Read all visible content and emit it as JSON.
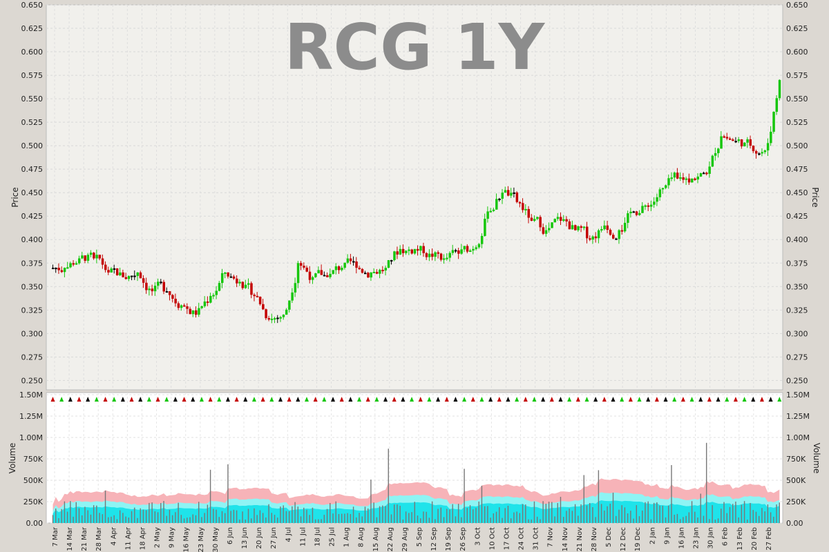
{
  "title": "RCG 1Y",
  "price_axis_label": "Price",
  "volume_axis_label": "Volume",
  "colors": {
    "up": "#16c60c",
    "down": "#c40000",
    "flat": "#000000",
    "volume_bar": "#777777",
    "band_pink": "#f7b3b8",
    "band_cyan_light": "#8ef4f4",
    "band_cyan": "#1fe3ea",
    "panel_bg": "#f1f0ec"
  },
  "chart_data": [
    {
      "type": "candlestick",
      "title": "RCG 1Y",
      "ylabel": "Price",
      "ylim": [
        0.24,
        0.65
      ],
      "y_ticks": [
        "0.250",
        "0.275",
        "0.300",
        "0.325",
        "0.350",
        "0.375",
        "0.400",
        "0.425",
        "0.450",
        "0.475",
        "0.500",
        "0.525",
        "0.550",
        "0.575",
        "0.600",
        "0.625",
        "0.650"
      ],
      "x_tick_labels": [
        "7 Mar",
        "14 Mar",
        "21 Mar",
        "28 Mar",
        "4 Apr",
        "11 Apr",
        "18 Apr",
        "2 May",
        "9 May",
        "16 May",
        "23 May",
        "30 May",
        "6 Jun",
        "13 Jun",
        "20 Jun",
        "27 Jun",
        "4 Jul",
        "11 Jul",
        "18 Jul",
        "25 Jul",
        "1 Aug",
        "8 Aug",
        "15 Aug",
        "22 Aug",
        "29 Aug",
        "5 Sep",
        "12 Sep",
        "19 Sep",
        "26 Sep",
        "3 Oct",
        "10 Oct",
        "17 Oct",
        "24 Oct",
        "31 Oct",
        "7 Nov",
        "14 Nov",
        "21 Nov",
        "28 Nov",
        "5 Dec",
        "12 Dec",
        "19 Dec",
        "2 Jan",
        "9 Jan",
        "16 Jan",
        "23 Jan",
        "30 Jan",
        "6 Feb",
        "13 Feb",
        "20 Feb",
        "27 Feb"
      ],
      "grid": true,
      "weekly_closes": [
        0.37,
        0.38,
        0.38,
        0.365,
        0.36,
        0.365,
        0.345,
        0.345,
        0.33,
        0.32,
        0.34,
        0.365,
        0.355,
        0.34,
        0.315,
        0.32,
        0.375,
        0.36,
        0.36,
        0.37,
        0.37,
        0.365,
        0.37,
        0.39,
        0.39,
        0.385,
        0.38,
        0.385,
        0.39,
        0.43,
        0.45,
        0.44,
        0.42,
        0.41,
        0.42,
        0.41,
        0.4,
        0.415,
        0.41,
        0.43,
        0.435,
        0.455,
        0.465,
        0.465,
        0.47,
        0.51,
        0.505,
        0.5,
        0.495,
        0.57
      ]
    },
    {
      "type": "bar",
      "ylabel": "Volume",
      "ylim": [
        0,
        1500000
      ],
      "y_ticks": [
        "0.00",
        "250K",
        "500K",
        "750K",
        "1.00M",
        "1.25M",
        "1.50M"
      ],
      "series": []
    }
  ]
}
